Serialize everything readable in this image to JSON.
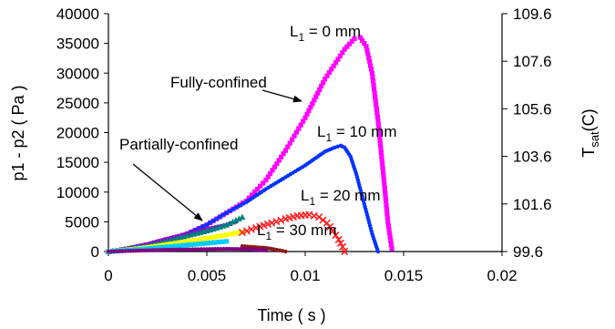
{
  "chart_data": {
    "type": "scatter",
    "xlabel": "Time ( s )",
    "ylabel": "p1 - p2 ( Pa )",
    "y2label": {
      "main": "T",
      "sub": "sat",
      "tail": "(C)"
    },
    "xlim": [
      0,
      0.02
    ],
    "ylim": [
      0,
      40000
    ],
    "y2lim": [
      99.6,
      109.6
    ],
    "x_ticks": [
      0,
      0.005,
      0.01,
      0.015,
      0.02
    ],
    "x_tick_labels": [
      "0",
      "0.005",
      "0.01",
      "0.015",
      "0.02"
    ],
    "y_ticks": [
      0,
      5000,
      10000,
      15000,
      20000,
      25000,
      30000,
      35000,
      40000
    ],
    "y_tick_labels": [
      "0",
      "5000",
      "10000",
      "15000",
      "20000",
      "25000",
      "30000",
      "35000",
      "40000"
    ],
    "y2_ticks": [
      99.6,
      101.6,
      103.6,
      105.6,
      107.6,
      109.6
    ],
    "y2_tick_labels": [
      "99.6",
      "101.6",
      "103.6",
      "105.6",
      "107.6",
      "109.6"
    ],
    "grid": false,
    "series": [
      {
        "marker": "square",
        "color": "#ff00ff",
        "x": [
          0,
          0.001,
          0.002,
          0.003,
          0.004,
          0.005,
          0.006,
          0.007,
          0.008,
          0.009,
          0.01,
          0.011,
          0.012,
          0.0125,
          0.0128,
          0.0131,
          0.0134,
          0.0137,
          0.014,
          0.0142,
          0.0144
        ],
        "y": [
          0,
          300,
          900,
          1800,
          3000,
          4500,
          6500,
          8500,
          12000,
          17000,
          22500,
          29000,
          34000,
          35800,
          36000,
          34500,
          30000,
          22000,
          12000,
          5000,
          500
        ]
      },
      {
        "marker": "dot",
        "color": "#0033ff",
        "x": [
          0,
          0.001,
          0.002,
          0.003,
          0.004,
          0.005,
          0.006,
          0.007,
          0.008,
          0.009,
          0.01,
          0.011,
          0.0115,
          0.0118,
          0.012,
          0.0123,
          0.0126,
          0.013,
          0.0134,
          0.0137
        ],
        "y": [
          0,
          300,
          900,
          1800,
          3000,
          4500,
          6500,
          8300,
          10500,
          12500,
          14500,
          16800,
          17500,
          17800,
          17500,
          16000,
          13000,
          8000,
          3000,
          0
        ]
      },
      {
        "marker": "dot",
        "color": "#9900cc",
        "x": [
          0,
          0.001,
          0.002,
          0.003,
          0.004,
          0.005,
          0.006,
          0.0065
        ],
        "y": [
          0,
          600,
          1300,
          2200,
          3000,
          3800,
          4500,
          5000
        ]
      },
      {
        "marker": "triangle",
        "color": "#008080",
        "x": [
          0,
          0.001,
          0.002,
          0.003,
          0.004,
          0.005,
          0.006,
          0.0068
        ],
        "y": [
          0,
          500,
          1000,
          1800,
          2700,
          3500,
          4500,
          5800
        ]
      },
      {
        "marker": "square",
        "color": "#ffff00",
        "x": [
          0,
          0.001,
          0.002,
          0.003,
          0.004,
          0.005,
          0.006,
          0.0068
        ],
        "y": [
          0,
          300,
          700,
          1200,
          1700,
          2200,
          2800,
          3300
        ]
      },
      {
        "marker": "x",
        "color": "#ff2020",
        "x": [
          0.0068,
          0.0075,
          0.0083,
          0.009,
          0.0096,
          0.0102,
          0.0107,
          0.0111,
          0.0114,
          0.0117,
          0.0119,
          0.012
        ],
        "y": [
          3200,
          4000,
          4800,
          5500,
          6000,
          6200,
          5800,
          4800,
          3500,
          2000,
          800,
          0
        ]
      },
      {
        "marker": "dot",
        "color": "#8b1a1a",
        "x": [
          0.0068,
          0.0072,
          0.0076,
          0.008,
          0.0084,
          0.0087,
          0.009
        ],
        "y": [
          900,
          800,
          700,
          600,
          400,
          200,
          0
        ]
      },
      {
        "marker": "square",
        "color": "#00ccff",
        "x": [
          0,
          0.001,
          0.002,
          0.003,
          0.004,
          0.005,
          0.006
        ],
        "y": [
          0,
          200,
          500,
          800,
          1100,
          1400,
          1700
        ]
      },
      {
        "marker": "dot",
        "color": "#800080",
        "x": [
          0,
          0.001,
          0.002,
          0.003,
          0.004,
          0.005,
          0.006,
          0.007,
          0.008
        ],
        "y": [
          0,
          100,
          200,
          300,
          350,
          400,
          450,
          400,
          200
        ]
      }
    ],
    "annotations": [
      {
        "id": "l1-0",
        "parts": [
          "L",
          "1",
          " = 0 mm"
        ]
      },
      {
        "id": "l1-10",
        "parts": [
          "L",
          "1",
          " = 10 mm"
        ]
      },
      {
        "id": "l1-20",
        "parts": [
          "L",
          "1",
          " = 20 mm"
        ]
      },
      {
        "id": "l1-30",
        "parts": [
          "L",
          "1",
          " = 30 mm"
        ]
      },
      {
        "id": "fully",
        "text": "Fully-confined"
      },
      {
        "id": "partially",
        "text": "Partially-confined"
      }
    ]
  }
}
